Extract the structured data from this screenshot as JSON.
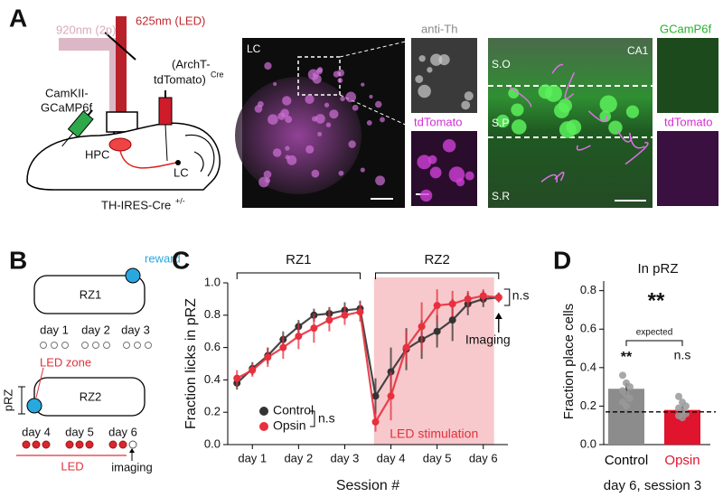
{
  "panel_a": {
    "letter": "A",
    "led": "625nm (LED)",
    "twop": "920nm (2p)",
    "virus_left_1": "CamKII-",
    "virus_left_2": "GCaMP6f",
    "virus_right_1": "(ArchT-",
    "virus_right_2": "tdTomato)",
    "virus_right_sup": "Cre",
    "hpc": "HPC",
    "lc": "LC",
    "mouse": "TH-IRES-Cre",
    "mouse_sup": "+/-",
    "images": {
      "lc": "LC",
      "anti_th": "anti-Th",
      "tdtomato_1": "tdTomato",
      "so": "S.O",
      "ca1": "CA1",
      "gcamp": "GCamP6f",
      "sp": "S.P",
      "sr": "S.R",
      "tdtomato_2": "tdTomato"
    }
  },
  "panel_b": {
    "letter": "B",
    "reward": "reward",
    "rz1": "RZ1",
    "days_rz1": [
      "day 1",
      "day 2",
      "day 3"
    ],
    "led_zone": "LED zone",
    "prz": "pRZ",
    "rz2": "RZ2",
    "days_rz2": [
      "day 4",
      "day 5",
      "day 6"
    ],
    "led": "LED",
    "imaging": "imaging"
  },
  "chart_data": [
    {
      "panel": "C",
      "type": "line",
      "xlabel": "Session #",
      "ylabel": "Fraction licks in pRZ",
      "x": [
        1,
        2,
        3,
        4,
        5,
        6,
        7,
        8,
        9,
        10,
        11,
        12,
        13,
        14,
        15,
        16,
        17,
        18
      ],
      "xlim": [
        0.4,
        18.6
      ],
      "xticks": [
        {
          "value": 2,
          "label": "day 1"
        },
        {
          "value": 5,
          "label": "day 2"
        },
        {
          "value": 8,
          "label": "day 3"
        },
        {
          "value": 11,
          "label": "day 4"
        },
        {
          "value": 14,
          "label": "day 5"
        },
        {
          "value": 17,
          "label": "day 6"
        }
      ],
      "ylim": [
        0,
        1
      ],
      "yticks": [
        {
          "value": 0,
          "label": "0.0"
        },
        0.2,
        0.4,
        0.6,
        0.8,
        {
          "value": 1,
          "label": "1.0"
        }
      ],
      "series": [
        {
          "name": "Control",
          "color": "#333333",
          "values": [
            0.38,
            0.47,
            0.55,
            0.65,
            0.73,
            0.8,
            0.81,
            0.83,
            0.84,
            0.3,
            0.45,
            0.59,
            0.65,
            0.7,
            0.77,
            0.87,
            0.9,
            0.91
          ],
          "errors": [
            0.04,
            0.04,
            0.05,
            0.05,
            0.04,
            0.04,
            0.04,
            0.05,
            0.05,
            0.11,
            0.15,
            0.13,
            0.12,
            0.1,
            0.13,
            0.07,
            0.05,
            0.03
          ]
        },
        {
          "name": "Opsin",
          "color": "#e8303e",
          "values": [
            0.41,
            0.46,
            0.54,
            0.6,
            0.67,
            0.72,
            0.77,
            0.8,
            0.82,
            0.14,
            0.3,
            0.6,
            0.73,
            0.86,
            0.87,
            0.9,
            0.92,
            0.91
          ],
          "errors": [
            0.05,
            0.04,
            0.06,
            0.07,
            0.08,
            0.09,
            0.07,
            0.06,
            0.06,
            0.06,
            0.15,
            0.1,
            0.15,
            0.1,
            0.08,
            0.05,
            0.04,
            0.03
          ]
        }
      ],
      "legend_position": "lower left",
      "brackets": [
        {
          "label": "RZ1",
          "xlim": [
            1,
            9
          ]
        },
        {
          "label": "RZ2",
          "xlim": [
            10,
            18
          ]
        }
      ],
      "shaded_region": {
        "label": "LED stimulation",
        "xlim": [
          9.9,
          17.7
        ],
        "color": "#f7c9cc"
      },
      "annotations": {
        "legend_test": "n.s",
        "final_test": "n.s",
        "imaging": "Imaging"
      }
    },
    {
      "panel": "D",
      "type": "bar",
      "title": "In pRZ",
      "ylabel": "Fraction place cells",
      "footer": "day 6, session 3",
      "categories": [
        "Control",
        "Opsin"
      ],
      "values": [
        0.29,
        0.18
      ],
      "errors": [
        0.03,
        0.02
      ],
      "colors": [
        "#8c8c8c",
        "#e0142d"
      ],
      "label_colors": [
        "#000000",
        "#e0142d"
      ],
      "points": [
        [
          0.36,
          0.32,
          0.3,
          0.28,
          0.26,
          0.24,
          0.22,
          0.2
        ],
        [
          0.25,
          0.22,
          0.2,
          0.19,
          0.17,
          0.16,
          0.15,
          0.14
        ]
      ],
      "ylim": [
        0,
        0.85
      ],
      "yticks": [
        {
          "value": 0,
          "label": "0.0"
        },
        0.2,
        0.4,
        0.6,
        0.8
      ],
      "reference_line": {
        "value": 0.17,
        "label": "expected"
      },
      "annotations": {
        "between": "**",
        "control_vs_expected": "**",
        "opsin_vs_expected": "n.s"
      }
    }
  ]
}
